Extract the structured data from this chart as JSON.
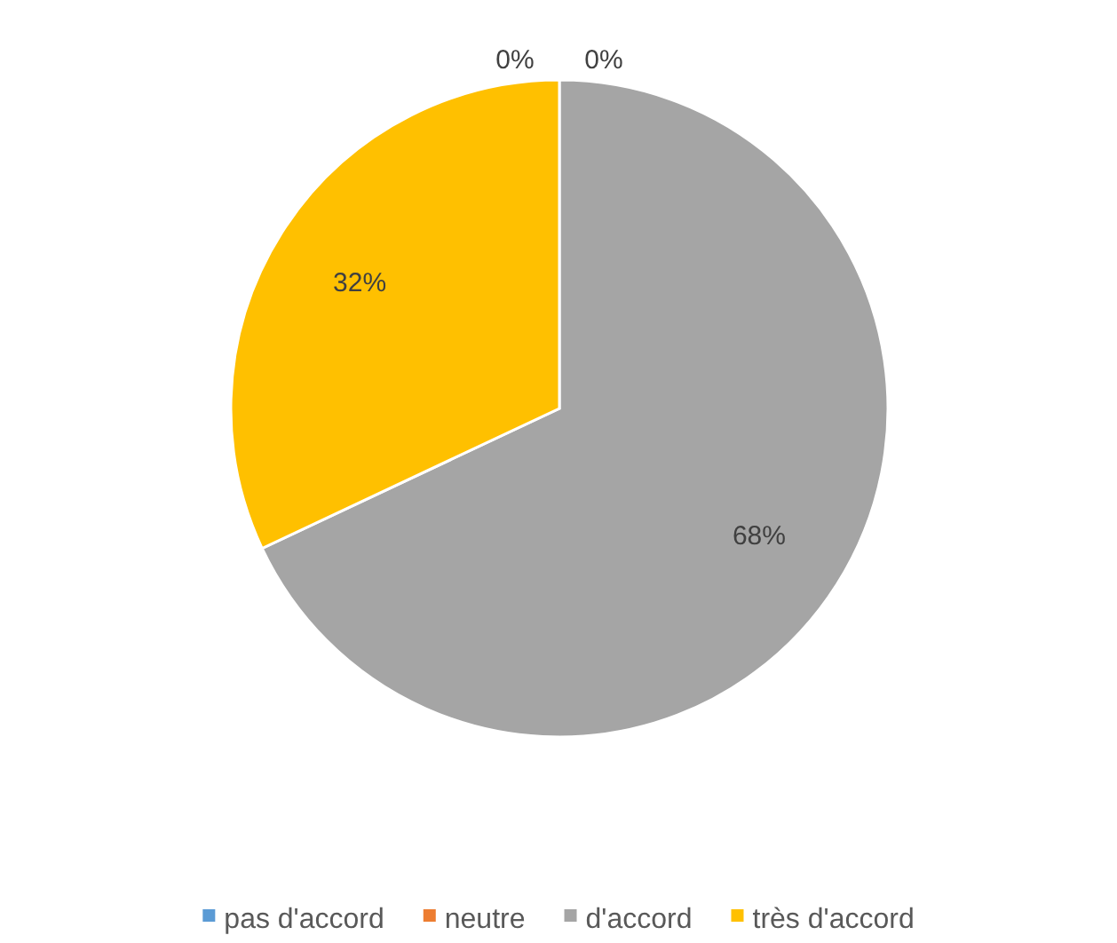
{
  "chart_data": {
    "type": "pie",
    "categories": [
      "pas d'accord",
      "neutre",
      "d'accord",
      "très d'accord"
    ],
    "values": [
      0,
      0,
      68,
      32
    ],
    "colors": [
      "#5b9bd5",
      "#ed7d31",
      "#a5a5a5",
      "#ffc000"
    ],
    "value_labels": [
      "0%",
      "0%",
      "68%",
      "32%"
    ],
    "legend": "bottom"
  }
}
